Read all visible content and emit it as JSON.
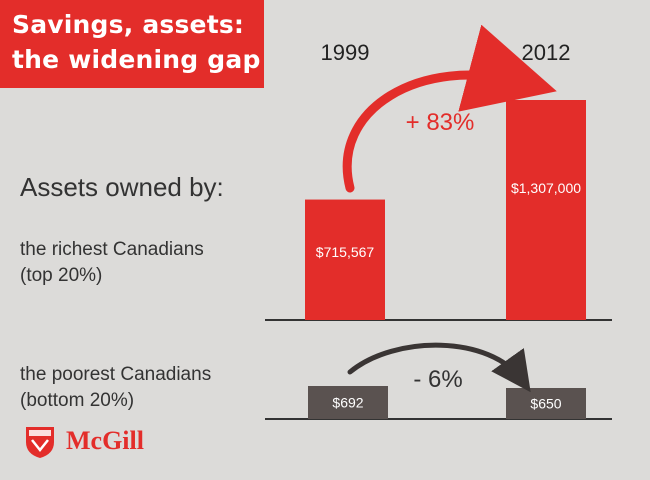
{
  "title_lines": [
    "Savings, assets:",
    "the widening gap"
  ],
  "heading": "Assets owned by:",
  "years": [
    "1999",
    "2012"
  ],
  "groups": {
    "rich": [
      "the richest Canadians",
      "(top 20%)"
    ],
    "poor": [
      "the poorest Canadians",
      "(bottom 20%)"
    ]
  },
  "logo_text": "McGill",
  "colors": {
    "title_bg": "#e32d2a",
    "rich_bar": "#e32d2a",
    "poor_bar": "#5a5250",
    "background": "#dcdbd9"
  },
  "chart_data": [
    {
      "type": "bar",
      "categories": [
        "1999",
        "2012"
      ],
      "values": [
        715567,
        1307000
      ],
      "value_labels": [
        "$715,567",
        "$1,307,000"
      ],
      "change_label": "+ 83%",
      "color": "#e32d2a"
    },
    {
      "type": "bar",
      "categories": [
        "1999",
        "2012"
      ],
      "values": [
        692,
        650
      ],
      "value_labels": [
        "$692",
        "$650"
      ],
      "change_label": "- 6%",
      "color": "#5a5250"
    }
  ]
}
